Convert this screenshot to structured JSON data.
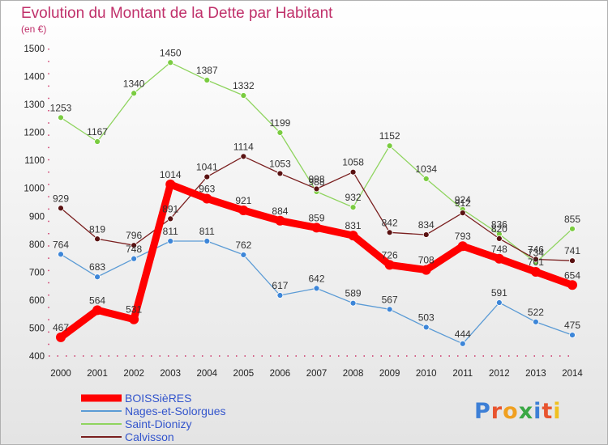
{
  "chart_data": {
    "type": "line",
    "title": "Evolution du Montant de la Dette par Habitant",
    "subtitle": "(en €)",
    "x": [
      "2000",
      "2001",
      "2002",
      "2003",
      "2004",
      "2005",
      "2006",
      "2007",
      "2008",
      "2009",
      "2010",
      "2011",
      "2012",
      "2013",
      "2014"
    ],
    "ylim": [
      400,
      1500
    ],
    "yticks": [
      400,
      500,
      600,
      700,
      800,
      900,
      1000,
      1100,
      1200,
      1300,
      1400,
      1500
    ],
    "grid": false,
    "legend_position": "bottom-left",
    "series": [
      {
        "name": "BOISSièRES",
        "color": "#ff0000",
        "values": [
          467,
          564,
          531,
          1014,
          963,
          921,
          884,
          859,
          831,
          726,
          708,
          793,
          748,
          701,
          654
        ]
      },
      {
        "name": "Nages-et-Solorgues",
        "color": "#5b9bd5",
        "values": [
          764,
          683,
          748,
          811,
          811,
          762,
          617,
          642,
          589,
          567,
          503,
          444,
          591,
          522,
          475
        ]
      },
      {
        "name": "Saint-Dionizy",
        "color": "#8fd45f",
        "values": [
          1253,
          1167,
          1340,
          1450,
          1387,
          1332,
          1199,
          988,
          932,
          1152,
          1034,
          924,
          836,
          734,
          855
        ]
      },
      {
        "name": "Calvisson",
        "color": "#7a1f1f",
        "values": [
          929,
          819,
          796,
          891,
          1041,
          1114,
          1053,
          998,
          1058,
          842,
          834,
          912,
          820,
          746,
          741
        ]
      }
    ]
  },
  "brand": {
    "logo_text": "Proxiti"
  }
}
